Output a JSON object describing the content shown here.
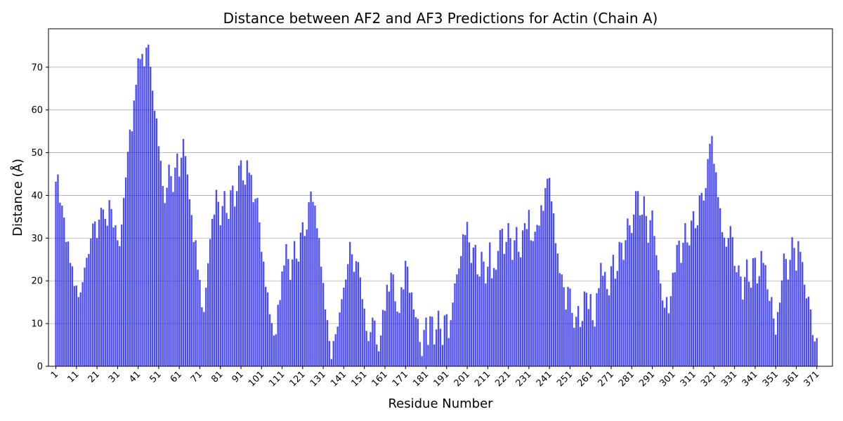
{
  "chart_data": {
    "type": "bar",
    "title": "Distance between AF2 and AF3 Predictions for Actin (Chain A)",
    "xlabel": "Residue Number",
    "ylabel": "Distance (Å)",
    "ylim": [
      0,
      79
    ],
    "xlim": [
      -2.6,
      378.6
    ],
    "yticks": [
      0,
      10,
      20,
      30,
      40,
      50,
      60,
      70
    ],
    "xticks": [
      1,
      11,
      21,
      31,
      41,
      51,
      61,
      71,
      81,
      91,
      101,
      111,
      121,
      131,
      141,
      151,
      161,
      171,
      181,
      191,
      201,
      211,
      221,
      231,
      241,
      251,
      261,
      271,
      281,
      291,
      301,
      311,
      321,
      331,
      341,
      351,
      361,
      371
    ],
    "grid": "y",
    "color": "#0000ff",
    "x_start": 1,
    "values": [
      43.2,
      44.9,
      38.3,
      37.6,
      34.8,
      29.1,
      29.2,
      24.2,
      23.4,
      18.8,
      18.9,
      16.2,
      17.3,
      19.7,
      23.1,
      25.4,
      26.3,
      29.9,
      33.4,
      33.9,
      30.0,
      34.3,
      37.1,
      36.7,
      34.5,
      32.9,
      38.9,
      36.8,
      32.5,
      33.0,
      29.5,
      28.1,
      33.2,
      39.4,
      44.2,
      50.2,
      55.4,
      55.0,
      62.2,
      65.9,
      72.1,
      71.9,
      73.1,
      70.2,
      74.6,
      75.3,
      70.1,
      64.5,
      59.8,
      58.0,
      51.5,
      48.1,
      42.2,
      38.2,
      41.8,
      47.2,
      44.5,
      40.8,
      46.5,
      49.8,
      44.4,
      48.8,
      53.2,
      49.2,
      44.9,
      39.1,
      35.4,
      29.1,
      29.5,
      22.6,
      20.2,
      13.8,
      12.7,
      18.4,
      24.1,
      29.8,
      34.5,
      35.5,
      41.3,
      38.5,
      33.0,
      37.5,
      41.0,
      35.9,
      34.5,
      41.2,
      42.3,
      37.4,
      41.0,
      47.0,
      48.2,
      43.5,
      42.5,
      48.2,
      45.3,
      44.8,
      38.4,
      39.2,
      39.4,
      33.7,
      26.8,
      24.5,
      18.6,
      17.3,
      12.2,
      10.1,
      7.2,
      7.5,
      14.4,
      15.5,
      22.2,
      23.6,
      28.6,
      25.1,
      20.2,
      25.0,
      29.3,
      25.2,
      24.5,
      31.3,
      33.7,
      30.5,
      32.0,
      38.4,
      40.9,
      38.5,
      37.6,
      32.3,
      30.0,
      23.3,
      19.5,
      13.3,
      10.8,
      5.9,
      1.7,
      5.9,
      7.5,
      9.3,
      12.6,
      15.7,
      18.4,
      20.3,
      23.9,
      29.1,
      26.2,
      22.1,
      24.6,
      24.4,
      20.8,
      15.7,
      13.5,
      8.3,
      5.9,
      8.0,
      11.4,
      10.7,
      5.1,
      3.5,
      7.2,
      13.2,
      13.0,
      19.1,
      17.5,
      21.9,
      21.5,
      15.2,
      12.8,
      12.5,
      18.5,
      18.0,
      24.7,
      23.3,
      17.2,
      17.3,
      13.3,
      11.5,
      11.1,
      5.7,
      2.4,
      8.5,
      11.4,
      5.0,
      11.7,
      11.6,
      5.1,
      8.6,
      13.0,
      8.8,
      5.0,
      11.9,
      12.2,
      6.6,
      10.8,
      14.9,
      19.4,
      21.5,
      22.9,
      25.8,
      30.9,
      30.7,
      33.8,
      29.0,
      24.2,
      27.8,
      28.4,
      21.5,
      21.0,
      26.8,
      24.5,
      19.4,
      23.3,
      29.0,
      20.6,
      23.0,
      22.6,
      27.0,
      31.9,
      32.2,
      26.3,
      29.1,
      33.5,
      30.0,
      24.9,
      29.5,
      32.6,
      26.8,
      25.5,
      31.8,
      33.5,
      32.1,
      36.6,
      29.5,
      29.3,
      31.5,
      33.1,
      32.9,
      37.7,
      36.4,
      41.7,
      43.9,
      44.1,
      38.6,
      35.8,
      28.8,
      26.4,
      21.8,
      21.5,
      18.5,
      13.3,
      18.6,
      18.2,
      12.5,
      9.0,
      11.6,
      14.1,
      9.2,
      10.6,
      17.5,
      17.2,
      13.4,
      16.9,
      10.8,
      9.3,
      17.1,
      18.3,
      24.2,
      21.2,
      22.1,
      18.1,
      16.6,
      23.4,
      26.1,
      20.5,
      22.3,
      29.1,
      28.9,
      24.9,
      29.5,
      34.6,
      33.0,
      31.2,
      35.5,
      41.0,
      41.0,
      35.3,
      35.5,
      39.8,
      35.2,
      28.9,
      34.2,
      36.5,
      30.5,
      26.0,
      22.5,
      19.4,
      15.4,
      13.7,
      16.2,
      12.4,
      16.4,
      21.9,
      22.0,
      28.4,
      29.4,
      24.2,
      28.9,
      33.5,
      29.0,
      28.3,
      34.1,
      36.3,
      32.3,
      33.0,
      40.0,
      40.6,
      38.8,
      41.7,
      48.5,
      52.1,
      53.9,
      47.4,
      45.4,
      39.6,
      37.0,
      31.4,
      30.1,
      28.0,
      30.0,
      32.8,
      30.2,
      23.5,
      22.0,
      23.6,
      21.0,
      15.6,
      20.9,
      25.0,
      19.8,
      18.4,
      25.3,
      25.4,
      19.4,
      21.1,
      27.0,
      24.2,
      23.7,
      18.0,
      15.3,
      16.2,
      11.2,
      7.4,
      12.7,
      14.9,
      20.1,
      26.4,
      25.1,
      20.3,
      24.9,
      30.2,
      27.7,
      22.4,
      29.3,
      26.8,
      24.4,
      19.1,
      15.9,
      16.3,
      13.3,
      7.3,
      5.8,
      6.6
    ]
  }
}
